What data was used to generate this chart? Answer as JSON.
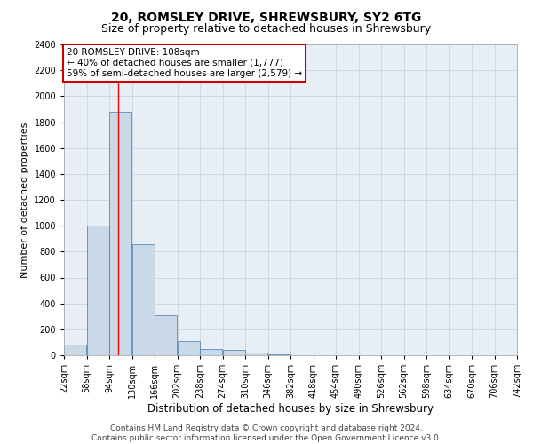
{
  "title": "20, ROMSLEY DRIVE, SHREWSBURY, SY2 6TG",
  "subtitle": "Size of property relative to detached houses in Shrewsbury",
  "xlabel": "Distribution of detached houses by size in Shrewsbury",
  "ylabel": "Number of detached properties",
  "bin_edges": [
    22,
    58,
    94,
    130,
    166,
    202,
    238,
    274,
    310,
    346,
    382,
    418,
    454,
    490,
    526,
    562,
    598,
    634,
    670,
    706,
    742
  ],
  "bar_heights": [
    80,
    1000,
    1880,
    860,
    310,
    110,
    50,
    40,
    20,
    10,
    0,
    0,
    0,
    0,
    0,
    0,
    0,
    0,
    0,
    0
  ],
  "bar_color": "#c9d9e8",
  "bar_edge_color": "#5a8ab5",
  "red_line_x": 108,
  "annotation_title": "20 ROMSLEY DRIVE: 108sqm",
  "annotation_line1": "← 40% of detached houses are smaller (1,777)",
  "annotation_line2": "59% of semi-detached houses are larger (2,579) →",
  "annotation_box_color": "#ffffff",
  "annotation_box_edge_color": "#cc0000",
  "ylim": [
    0,
    2400
  ],
  "yticks": [
    0,
    200,
    400,
    600,
    800,
    1000,
    1200,
    1400,
    1600,
    1800,
    2000,
    2200,
    2400
  ],
  "grid_color": "#c8d4e0",
  "background_color": "#e8eef5",
  "footer_line1": "Contains HM Land Registry data © Crown copyright and database right 2024.",
  "footer_line2": "Contains public sector information licensed under the Open Government Licence v3.0.",
  "title_fontsize": 10,
  "subtitle_fontsize": 9,
  "xlabel_fontsize": 8.5,
  "ylabel_fontsize": 8,
  "tick_fontsize": 7,
  "annotation_fontsize": 7.5,
  "footer_fontsize": 6.5
}
